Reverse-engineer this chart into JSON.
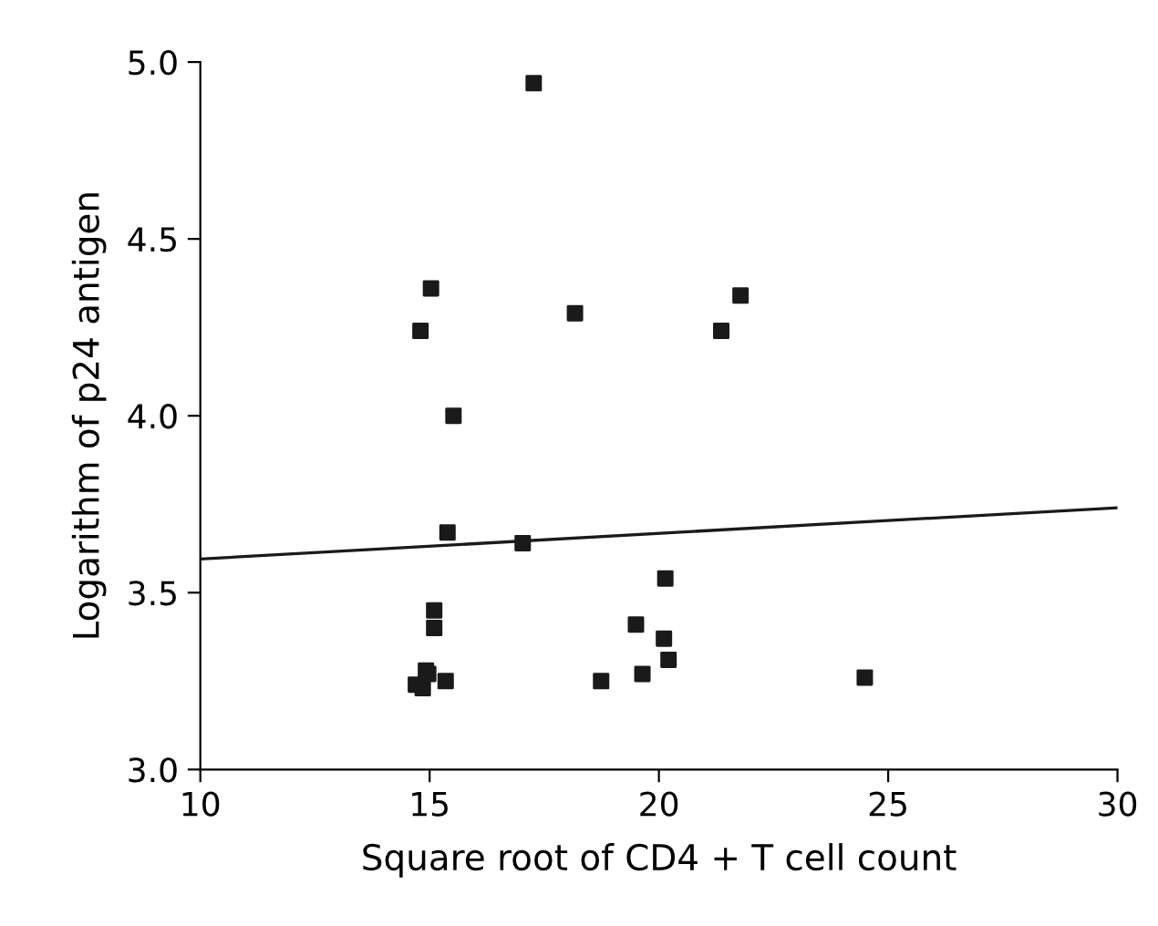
{
  "chart_data": {
    "type": "scatter",
    "xlabel": "Square root of CD4 + T cell count",
    "ylabel": "Logarithm of p24 antigen",
    "xlim": [
      10,
      30
    ],
    "ylim": [
      3.0,
      5.0
    ],
    "xticks": [
      10,
      15,
      20,
      25,
      30
    ],
    "yticks": [
      {
        "value": 3.0,
        "label": "3.0"
      },
      {
        "value": 3.5,
        "label": "3.5"
      },
      {
        "value": 4.0,
        "label": "4.0"
      },
      {
        "value": 4.5,
        "label": "4.5"
      },
      {
        "value": 5.0,
        "label": "5.0"
      }
    ],
    "grid": false,
    "legend": false,
    "marker": "square",
    "series": [
      {
        "color": "#1a1a1a",
        "x": [
          17.27,
          15.03,
          14.8,
          18.17,
          21.36,
          21.78,
          15.52,
          15.39,
          17.03,
          20.14,
          15.1,
          15.1,
          19.5,
          20.11,
          20.21,
          19.64,
          18.74,
          24.49,
          15.35,
          14.92,
          14.97,
          14.7,
          14.85
        ],
        "values": [
          4.94,
          4.36,
          4.24,
          4.29,
          4.24,
          4.34,
          4.0,
          3.67,
          3.64,
          3.54,
          3.45,
          3.4,
          3.41,
          3.37,
          3.31,
          3.27,
          3.25,
          3.26,
          3.25,
          3.28,
          3.27,
          3.24,
          3.23
        ]
      },
      {
        "type": "line",
        "color": "#1a1a1a",
        "x": [
          10,
          30
        ],
        "values": [
          3.595,
          3.74
        ],
        "marker": "none",
        "line_style": "solid"
      }
    ]
  }
}
